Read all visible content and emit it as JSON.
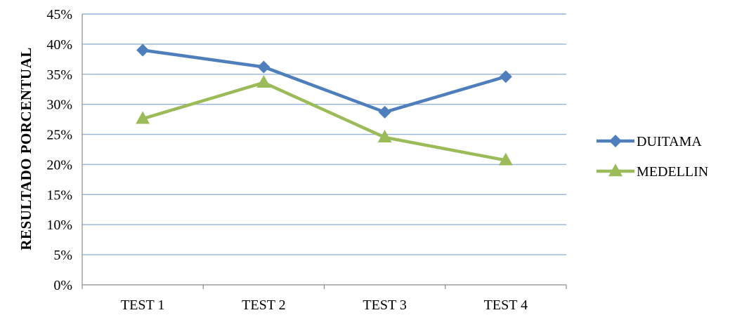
{
  "chart_data": {
    "type": "line",
    "title": "",
    "xlabel": "",
    "ylabel": "RESULTADO PORCENTUAL",
    "categories": [
      "TEST 1",
      "TEST 2",
      "TEST 3",
      "TEST 4"
    ],
    "y_ticks": [
      "0%",
      "5%",
      "10%",
      "15%",
      "20%",
      "25%",
      "30%",
      "35%",
      "40%",
      "45%"
    ],
    "ylim": [
      0,
      45
    ],
    "grid": true,
    "legend_position": "right",
    "series": [
      {
        "name": "DUITAMA",
        "values": [
          39,
          36.2,
          28.7,
          34.6
        ],
        "color": "#4F7EBD",
        "marker": "diamond"
      },
      {
        "name": "MEDELLIN",
        "values": [
          27.6,
          33.6,
          24.5,
          20.7
        ],
        "color": "#9BBB59",
        "marker": "triangle"
      }
    ]
  }
}
